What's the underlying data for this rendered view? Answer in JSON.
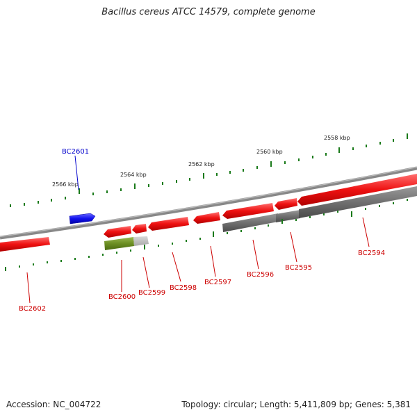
{
  "title": "Bacillus cereus ATCC 14579, complete genome",
  "footer": {
    "accession": "Accession: NC_004722",
    "topology": "Topology: circular; Length: 5,411,809 bp; Genes: 5,381"
  },
  "ruler": {
    "labels": [
      "2566 kbp",
      "2564 kbp",
      "2562 kbp",
      "2560 kbp",
      "2558 kbp"
    ],
    "tick_color": "#1a7a1a"
  },
  "colors": {
    "forward_gene": "#ee1111",
    "reverse_gene": "#ee1111",
    "highlight_gene": "#1111ee",
    "rna_gene": "#6b8e23",
    "backbone": "#808080",
    "label_red": "#cc0000",
    "label_blue": "#0000cc"
  },
  "genes": [
    {
      "name": "BC2601",
      "color": "blue"
    },
    {
      "name": "BC2602",
      "color": "red"
    },
    {
      "name": "BC2600",
      "color": "red"
    },
    {
      "name": "BC2599",
      "color": "red"
    },
    {
      "name": "BC2598",
      "color": "red"
    },
    {
      "name": "BC2597",
      "color": "red"
    },
    {
      "name": "BC2596",
      "color": "red"
    },
    {
      "name": "BC2595",
      "color": "red"
    },
    {
      "name": "BC2594",
      "color": "red"
    }
  ]
}
